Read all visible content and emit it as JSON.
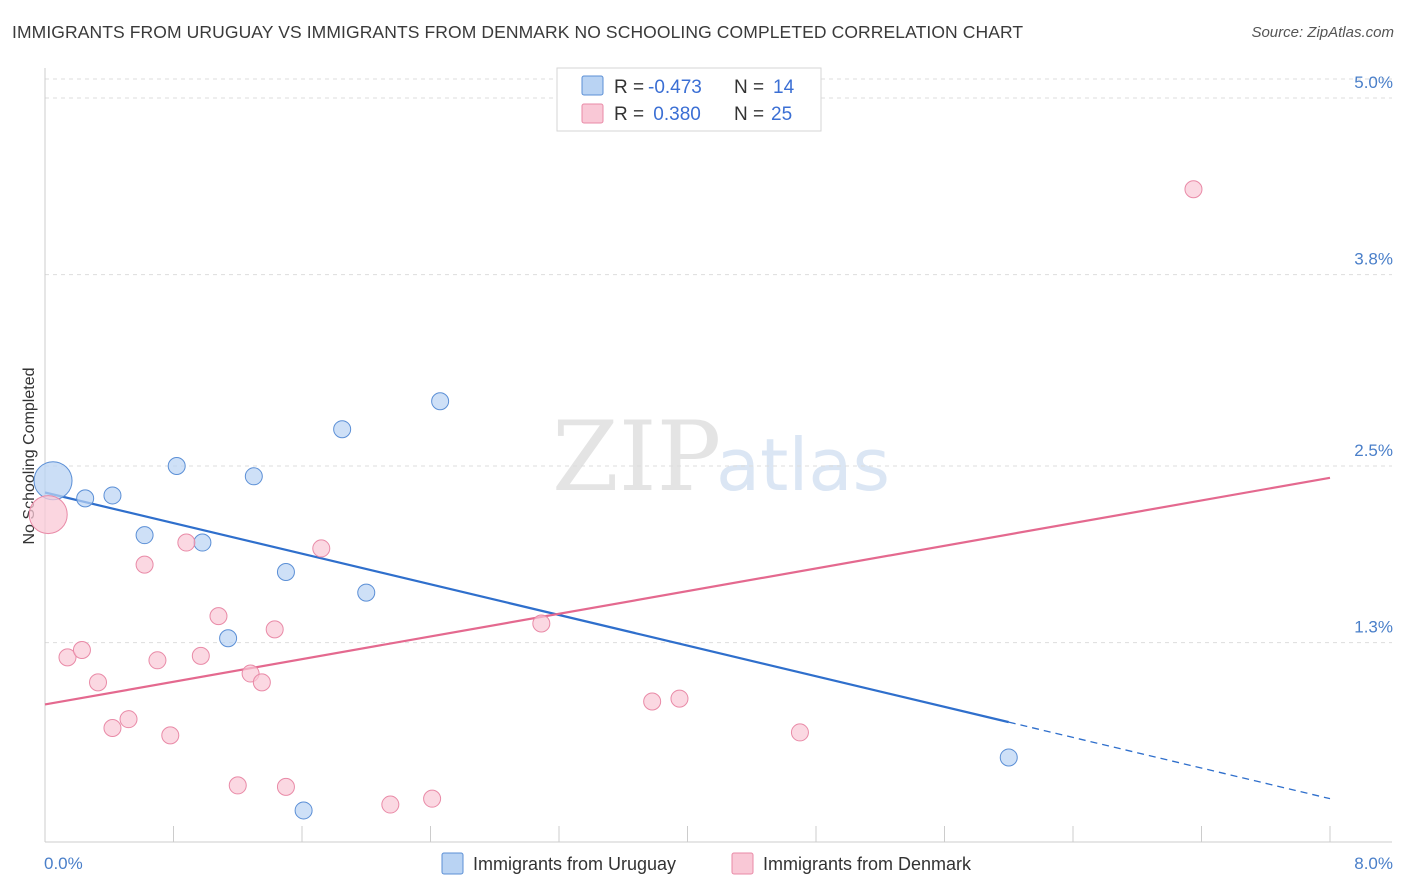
{
  "title": "IMMIGRANTS FROM URUGUAY VS IMMIGRANTS FROM DENMARK NO SCHOOLING COMPLETED CORRELATION CHART",
  "source": "Source: ZipAtlas.com",
  "watermark": {
    "zip": "ZIP",
    "atlas": "atlas"
  },
  "colors": {
    "uruguay_fill": "#b9d3f3",
    "uruguay_stroke": "#5b8fd6",
    "uruguay_line": "#2f6fcc",
    "denmark_fill": "#f9c8d6",
    "denmark_stroke": "#e98aa7",
    "denmark_line": "#e4698f"
  },
  "legend": {
    "rows": [
      {
        "r_label": "R = ",
        "r_value": "-0.473",
        "n_label": "N = ",
        "n_value": "14"
      },
      {
        "r_label": "R = ",
        "r_value": " 0.380",
        "n_label": "N = ",
        "n_value": "25"
      }
    ]
  },
  "chart_data": {
    "type": "scatter",
    "xlabel": "",
    "ylabel": "No Schooling Completed",
    "xlim": [
      0,
      8
    ],
    "ylim": [
      0,
      5.2
    ],
    "x_tick_labels": [
      "0.0%",
      "8.0%"
    ],
    "y_ticks": [
      {
        "value": 1.3,
        "label": "1.3%"
      },
      {
        "value": 2.5,
        "label": "2.5%"
      },
      {
        "value": 3.8,
        "label": "3.8%"
      },
      {
        "value": 5.0,
        "label": "5.0%"
      }
    ],
    "series": [
      {
        "name": "Immigrants from Uruguay",
        "color_key": "uruguay",
        "points": [
          {
            "x": 0.05,
            "y": 2.4,
            "big": true
          },
          {
            "x": 0.25,
            "y": 2.28
          },
          {
            "x": 0.42,
            "y": 2.3
          },
          {
            "x": 0.62,
            "y": 2.03
          },
          {
            "x": 0.82,
            "y": 2.5
          },
          {
            "x": 0.98,
            "y": 1.98
          },
          {
            "x": 1.14,
            "y": 1.33
          },
          {
            "x": 1.3,
            "y": 2.43
          },
          {
            "x": 1.5,
            "y": 1.78
          },
          {
            "x": 1.61,
            "y": 0.16
          },
          {
            "x": 1.85,
            "y": 2.75
          },
          {
            "x": 2.0,
            "y": 1.64
          },
          {
            "x": 2.46,
            "y": 2.94
          },
          {
            "x": 6.0,
            "y": 0.52
          }
        ],
        "trend": {
          "x0": 0.0,
          "y0": 2.32,
          "x1": 6.0,
          "y1": 0.76,
          "dash_to_x": 8.0,
          "dash_to_y": 0.24
        }
      },
      {
        "name": "Immigrants from Denmark",
        "color_key": "denmark",
        "points": [
          {
            "x": 0.02,
            "y": 2.17,
            "big": true
          },
          {
            "x": 0.14,
            "y": 1.2
          },
          {
            "x": 0.23,
            "y": 1.25
          },
          {
            "x": 0.33,
            "y": 1.03
          },
          {
            "x": 0.42,
            "y": 0.72
          },
          {
            "x": 0.52,
            "y": 0.78
          },
          {
            "x": 0.62,
            "y": 1.83
          },
          {
            "x": 0.7,
            "y": 1.18
          },
          {
            "x": 0.78,
            "y": 0.67
          },
          {
            "x": 0.88,
            "y": 1.98
          },
          {
            "x": 0.97,
            "y": 1.21
          },
          {
            "x": 1.08,
            "y": 1.48
          },
          {
            "x": 1.2,
            "y": 0.33
          },
          {
            "x": 1.28,
            "y": 1.09
          },
          {
            "x": 1.35,
            "y": 1.03
          },
          {
            "x": 1.5,
            "y": 0.32
          },
          {
            "x": 1.43,
            "y": 1.39
          },
          {
            "x": 1.72,
            "y": 1.94
          },
          {
            "x": 2.15,
            "y": 0.2
          },
          {
            "x": 2.41,
            "y": 0.24
          },
          {
            "x": 3.09,
            "y": 1.43
          },
          {
            "x": 3.78,
            "y": 0.9
          },
          {
            "x": 3.95,
            "y": 0.92
          },
          {
            "x": 4.7,
            "y": 0.69
          },
          {
            "x": 7.15,
            "y": 4.38
          }
        ],
        "trend": {
          "x0": 0.0,
          "y0": 0.88,
          "x1": 8.0,
          "y1": 2.42
        }
      }
    ]
  }
}
